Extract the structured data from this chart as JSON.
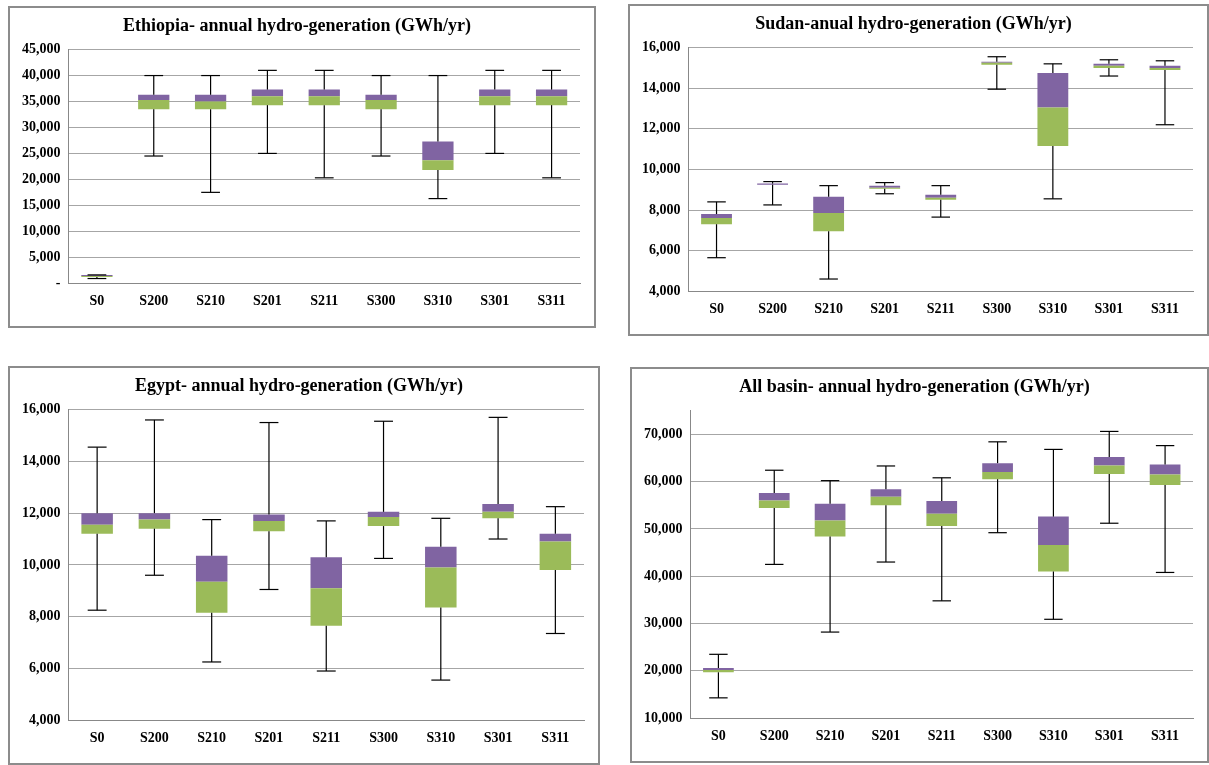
{
  "chart_data": [
    {
      "type": "box",
      "title": "Ethiopia- annual hydro-generation (GWh/yr)",
      "categories": [
        "S0",
        "S200",
        "S210",
        "S201",
        "S211",
        "S300",
        "S310",
        "S301",
        "S311"
      ],
      "colors": [
        [
          "#9bbb59",
          "#8064a2"
        ],
        [
          "#9bbb59",
          "#8064a2"
        ],
        [
          "#9bbb59",
          "#8064a2"
        ],
        [
          "#9bbb59",
          "#8064a2"
        ],
        [
          "#9bbb59",
          "#8064a2"
        ],
        [
          "#9bbb59",
          "#8064a2"
        ],
        [
          "#9bbb59",
          "#8064a2"
        ],
        [
          "#9bbb59",
          "#8064a2"
        ],
        [
          "#9bbb59",
          "#8064a2"
        ]
      ],
      "grid": "y",
      "legend": false,
      "ylim": [
        0,
        45000
      ],
      "yticks": [
        {
          "value": 0,
          "label": "-"
        },
        {
          "value": 5000,
          "label": "5,000"
        },
        {
          "value": 10000,
          "label": "10,000"
        },
        {
          "value": 15000,
          "label": "15,000"
        },
        {
          "value": 20000,
          "label": "20,000"
        },
        {
          "value": 25000,
          "label": "25,000"
        },
        {
          "value": 30000,
          "label": "30,000"
        },
        {
          "value": 35000,
          "label": "35,000"
        },
        {
          "value": 40000,
          "label": "40,000"
        },
        {
          "value": 45000,
          "label": "45,000"
        }
      ],
      "boxes": [
        {
          "low": 900,
          "q1": 1200,
          "median": 1400,
          "q3": 1600,
          "high": 1600
        },
        {
          "low": 24500,
          "q1": 33500,
          "median": 35300,
          "q3": 36300,
          "high": 40000
        },
        {
          "low": 17500,
          "q1": 33500,
          "median": 35000,
          "q3": 36300,
          "high": 40000
        },
        {
          "low": 25000,
          "q1": 34300,
          "median": 36000,
          "q3": 37300,
          "high": 41000
        },
        {
          "low": 20300,
          "q1": 34300,
          "median": 36000,
          "q3": 37300,
          "high": 41000
        },
        {
          "low": 24500,
          "q1": 33500,
          "median": 35300,
          "q3": 36300,
          "high": 40000
        },
        {
          "low": 16300,
          "q1": 21800,
          "median": 23700,
          "q3": 27300,
          "high": 40000
        },
        {
          "low": 25000,
          "q1": 34300,
          "median": 36000,
          "q3": 37300,
          "high": 41000
        },
        {
          "low": 20300,
          "q1": 34300,
          "median": 36000,
          "q3": 37300,
          "high": 41000
        }
      ]
    },
    {
      "type": "box",
      "title": "Sudan-anual hydro-generation (GWh/yr)",
      "categories": [
        "S0",
        "S200",
        "S210",
        "S201",
        "S211",
        "S300",
        "S310",
        "S301",
        "S311"
      ],
      "colors": [
        [
          "#9bbb59",
          "#8064a2"
        ],
        [
          "#9bbb59",
          "#8064a2"
        ],
        [
          "#9bbb59",
          "#8064a2"
        ],
        [
          "#9bbb59",
          "#8064a2"
        ],
        [
          "#9bbb59",
          "#8064a2"
        ],
        [
          "#9bbb59",
          "#8064a2"
        ],
        [
          "#9bbb59",
          "#8064a2"
        ],
        [
          "#9bbb59",
          "#8064a2"
        ],
        [
          "#9bbb59",
          "#8064a2"
        ]
      ],
      "grid": "y",
      "legend": false,
      "ylim": [
        4000,
        16000
      ],
      "yticks": [
        {
          "value": 4000,
          "label": "4,000"
        },
        {
          "value": 6000,
          "label": "6,000"
        },
        {
          "value": 8000,
          "label": "8,000"
        },
        {
          "value": 10000,
          "label": "10,000"
        },
        {
          "value": 12000,
          "label": "12,000"
        },
        {
          "value": 14000,
          "label": "14,000"
        },
        {
          "value": 16000,
          "label": "16,000"
        }
      ],
      "boxes": [
        {
          "low": 5650,
          "q1": 7300,
          "median": 7600,
          "q3": 7800,
          "high": 8400
        },
        {
          "low": 8250,
          "q1": 9250,
          "median": 9250,
          "q3": 9300,
          "high": 9400
        },
        {
          "low": 4600,
          "q1": 6950,
          "median": 7850,
          "q3": 8650,
          "high": 9200
        },
        {
          "low": 8800,
          "q1": 9050,
          "median": 9100,
          "q3": 9200,
          "high": 9350
        },
        {
          "low": 7650,
          "q1": 8500,
          "median": 8600,
          "q3": 8750,
          "high": 9200
        },
        {
          "low": 13950,
          "q1": 15150,
          "median": 15250,
          "q3": 15300,
          "high": 15550
        },
        {
          "low": 8550,
          "q1": 11150,
          "median": 13050,
          "q3": 14750,
          "high": 15200
        },
        {
          "low": 14600,
          "q1": 15000,
          "median": 15100,
          "q3": 15200,
          "high": 15400
        },
        {
          "low": 12200,
          "q1": 14900,
          "median": 15000,
          "q3": 15100,
          "high": 15350
        }
      ]
    },
    {
      "type": "box",
      "title": "Egypt- annual hydro-generation (GWh/yr)",
      "categories": [
        "S0",
        "S200",
        "S210",
        "S201",
        "S211",
        "S300",
        "S310",
        "S301",
        "S311"
      ],
      "colors": [
        [
          "#9bbb59",
          "#8064a2"
        ],
        [
          "#9bbb59",
          "#8064a2"
        ],
        [
          "#9bbb59",
          "#8064a2"
        ],
        [
          "#9bbb59",
          "#8064a2"
        ],
        [
          "#9bbb59",
          "#8064a2"
        ],
        [
          "#9bbb59",
          "#8064a2"
        ],
        [
          "#9bbb59",
          "#8064a2"
        ],
        [
          "#9bbb59",
          "#8064a2"
        ],
        [
          "#9bbb59",
          "#8064a2"
        ]
      ],
      "grid": "y",
      "legend": false,
      "ylim": [
        4000,
        16000
      ],
      "yticks": [
        {
          "value": 4000,
          "label": "4,000"
        },
        {
          "value": 6000,
          "label": "6,000"
        },
        {
          "value": 8000,
          "label": "8,000"
        },
        {
          "value": 10000,
          "label": "10,000"
        },
        {
          "value": 12000,
          "label": "12,000"
        },
        {
          "value": 14000,
          "label": "14,000"
        },
        {
          "value": 16000,
          "label": "16,000"
        }
      ],
      "boxes": [
        {
          "low": 8250,
          "q1": 11200,
          "median": 11550,
          "q3": 12000,
          "high": 14550
        },
        {
          "low": 9600,
          "q1": 11400,
          "median": 11750,
          "q3": 12000,
          "high": 15600
        },
        {
          "low": 6250,
          "q1": 8150,
          "median": 9350,
          "q3": 10350,
          "high": 11750
        },
        {
          "low": 9050,
          "q1": 11300,
          "median": 11700,
          "q3": 11950,
          "high": 15500
        },
        {
          "low": 5900,
          "q1": 7650,
          "median": 9100,
          "q3": 10300,
          "high": 11700
        },
        {
          "low": 10250,
          "q1": 11500,
          "median": 11850,
          "q3": 12050,
          "high": 15550
        },
        {
          "low": 5550,
          "q1": 8350,
          "median": 9900,
          "q3": 10700,
          "high": 11800
        },
        {
          "low": 11000,
          "q1": 11800,
          "median": 12050,
          "q3": 12350,
          "high": 15700
        },
        {
          "low": 7350,
          "q1": 9800,
          "median": 10900,
          "q3": 11200,
          "high": 12250
        }
      ]
    },
    {
      "type": "box",
      "title": "All basin- annual hydro-generation (GWh/yr)",
      "categories": [
        "S0",
        "S200",
        "S210",
        "S201",
        "S211",
        "S300",
        "S310",
        "S301",
        "S311"
      ],
      "colors": [
        [
          "#9bbb59",
          "#8064a2"
        ],
        [
          "#9bbb59",
          "#8064a2"
        ],
        [
          "#9bbb59",
          "#8064a2"
        ],
        [
          "#9bbb59",
          "#8064a2"
        ],
        [
          "#9bbb59",
          "#8064a2"
        ],
        [
          "#9bbb59",
          "#8064a2"
        ],
        [
          "#9bbb59",
          "#8064a2"
        ],
        [
          "#9bbb59",
          "#8064a2"
        ],
        [
          "#9bbb59",
          "#8064a2"
        ]
      ],
      "grid": "y",
      "legend": false,
      "ylim": [
        10000,
        75000
      ],
      "yticks": [
        {
          "value": 10000,
          "label": "10,000"
        },
        {
          "value": 20000,
          "label": "20,000"
        },
        {
          "value": 30000,
          "label": "30,000"
        },
        {
          "value": 40000,
          "label": "40,000"
        },
        {
          "value": 50000,
          "label": "50,000"
        },
        {
          "value": 60000,
          "label": "60,000"
        },
        {
          "value": 70000,
          "label": "70,000"
        }
      ],
      "boxes": [
        {
          "low": 14300,
          "q1": 19700,
          "median": 20200,
          "q3": 20600,
          "high": 23500
        },
        {
          "low": 42500,
          "q1": 54400,
          "median": 56000,
          "q3": 57600,
          "high": 62400
        },
        {
          "low": 28200,
          "q1": 48400,
          "median": 51800,
          "q3": 55300,
          "high": 60200
        },
        {
          "low": 43000,
          "q1": 55000,
          "median": 56800,
          "q3": 58400,
          "high": 63300
        },
        {
          "low": 34800,
          "q1": 50600,
          "median": 53200,
          "q3": 55900,
          "high": 60800
        },
        {
          "low": 49200,
          "q1": 60500,
          "median": 62000,
          "q3": 63900,
          "high": 68400
        },
        {
          "low": 30900,
          "q1": 41000,
          "median": 46600,
          "q3": 52600,
          "high": 66800
        },
        {
          "low": 51200,
          "q1": 61600,
          "median": 63400,
          "q3": 65200,
          "high": 70600
        },
        {
          "low": 40800,
          "q1": 59300,
          "median": 61500,
          "q3": 63600,
          "high": 67600
        }
      ]
    }
  ]
}
